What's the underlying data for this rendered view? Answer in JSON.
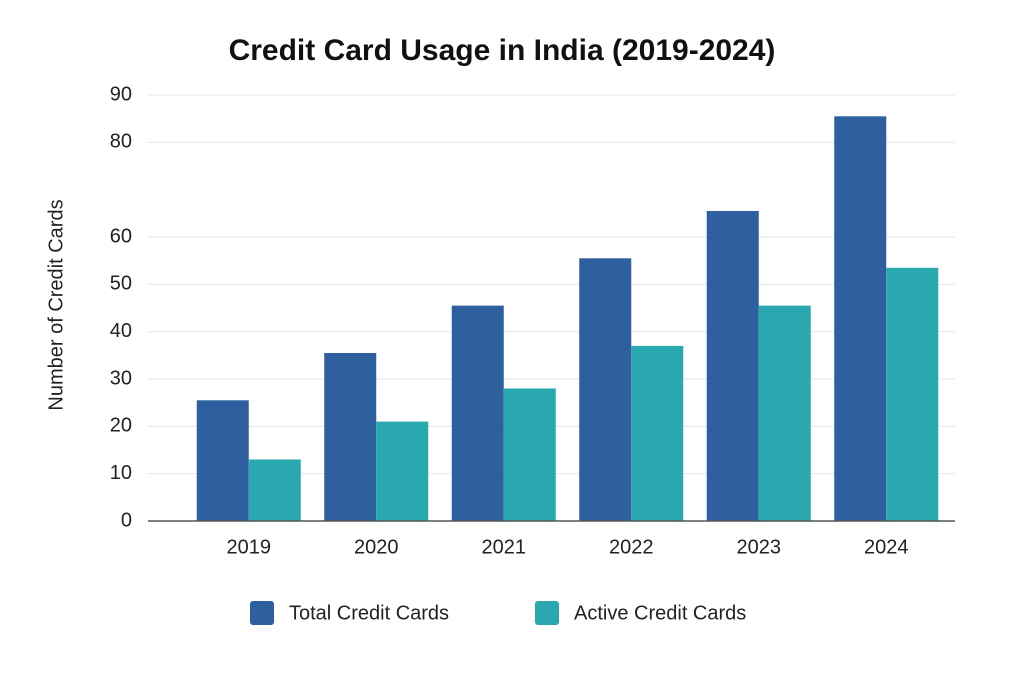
{
  "chart_data": {
    "type": "bar",
    "title": "Credit Card Usage in India (2019-2024)",
    "y_label": "Number of Credit Cards",
    "categories": [
      "2019",
      "2020",
      "2021",
      "2022",
      "2023",
      "2024"
    ],
    "series": [
      {
        "name": "Total Credit Cards",
        "color": "#2e5f9e",
        "values": [
          25.5,
          35.5,
          45.5,
          55.5,
          65.5,
          85.5
        ]
      },
      {
        "name": "Active Credit Cards",
        "color": "#2aa8b0",
        "values": [
          13,
          21,
          28,
          37,
          45.5,
          53.5
        ]
      }
    ],
    "ylim": [
      0,
      90
    ],
    "yticks": [
      0,
      10,
      20,
      30,
      40,
      50,
      60,
      80,
      90
    ],
    "grid": true,
    "legend": "bottom"
  }
}
